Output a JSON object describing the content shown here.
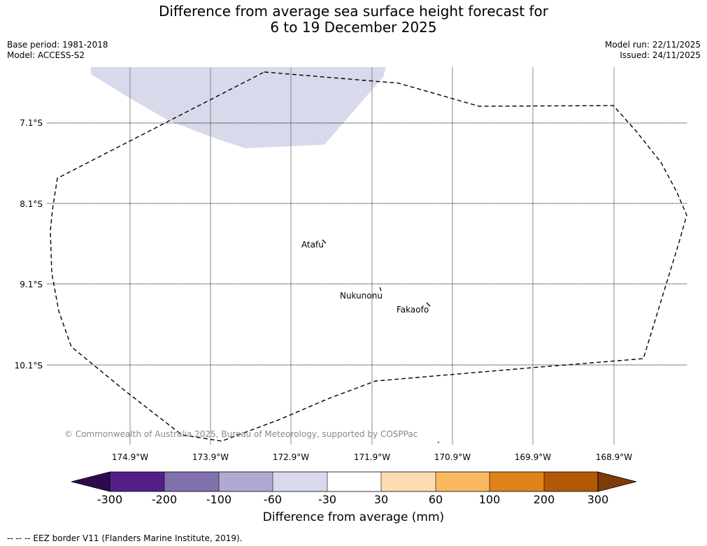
{
  "title": {
    "line1": "Difference from average sea surface height forecast for",
    "line2": "6 to 19 December 2025"
  },
  "meta": {
    "base_period": "Base period: 1981-2018",
    "model": "Model: ACCESS-S2",
    "model_run": "Model run: 22/11/2025",
    "issued": "Issued: 24/11/2025"
  },
  "map": {
    "latitude_labels": [
      "7.1°S",
      "8.1°S",
      "9.1°S",
      "10.1°S"
    ],
    "longitude_labels": [
      "174.9°W",
      "173.9°W",
      "172.9°W",
      "171.9°W",
      "170.9°W",
      "169.9°W",
      "168.9°W"
    ],
    "places": [
      "Atafu",
      "Nukunonu",
      "Fakaofo"
    ],
    "copyright": "© Commonwealth of Australia 2025, Bureau of Meteorology, supported by COSPPac"
  },
  "colorbar": {
    "labels": [
      "-300",
      "-200",
      "-100",
      "-60",
      "-30",
      "30",
      "60",
      "100",
      "200",
      "300"
    ],
    "colors": [
      "#2d0a4e",
      "#542088",
      "#8071ad",
      "#b0aad3",
      "#d8d9ea",
      "#ffffff",
      "#fddcb3",
      "#fbb860",
      "#e0821a",
      "#b35807",
      "#7f3b08"
    ],
    "title": "Difference from average (mm)"
  },
  "footnote": "--  --  -- EEZ border V11 (Flanders Marine Institute, 2019)."
}
